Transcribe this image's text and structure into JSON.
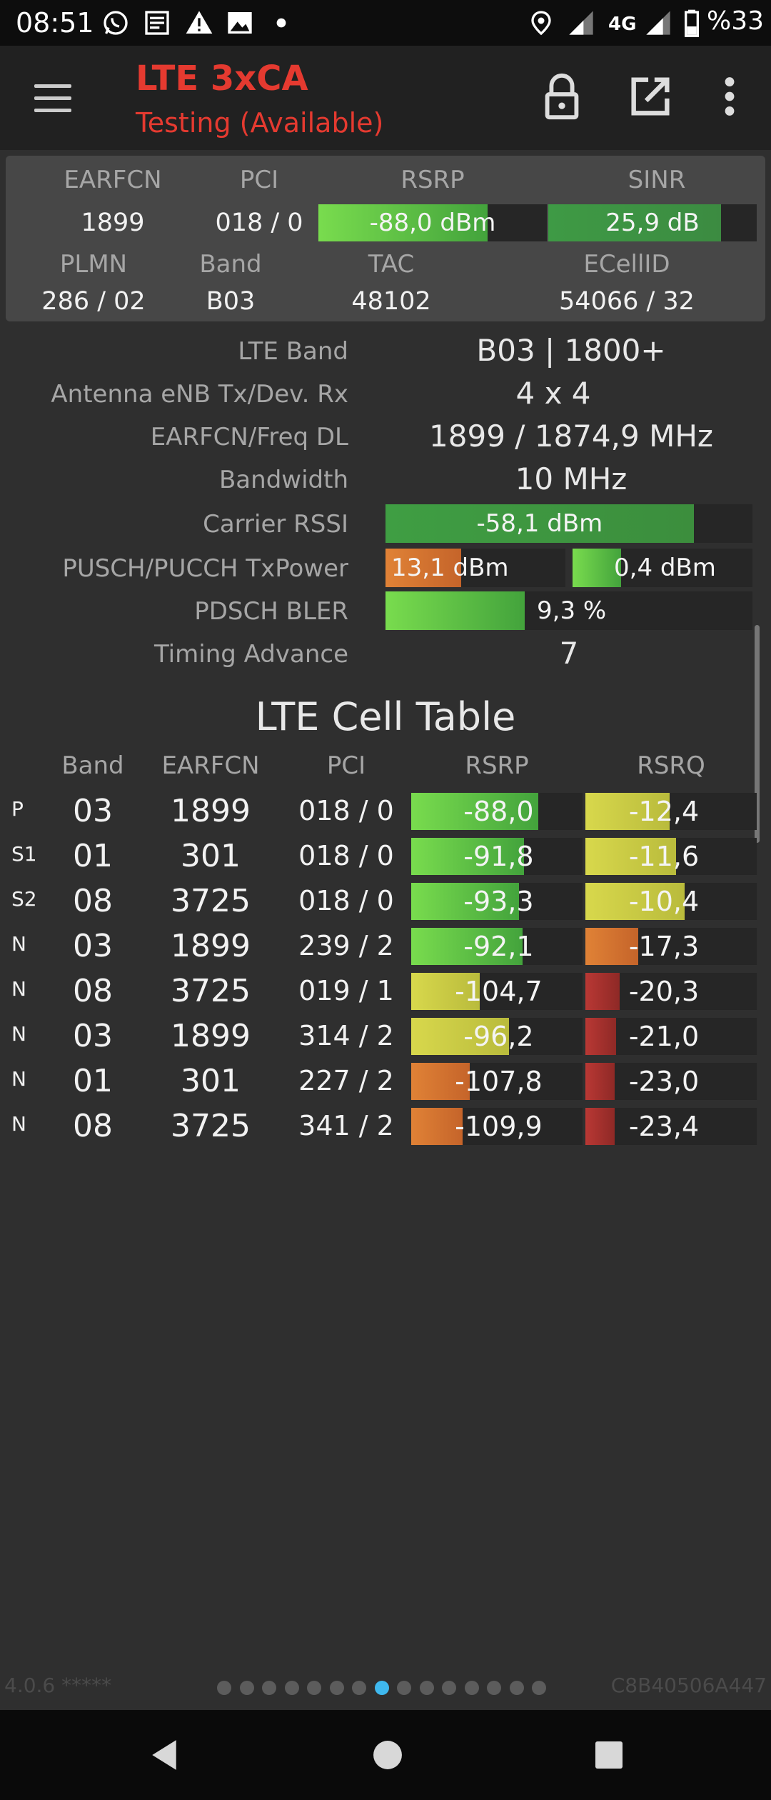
{
  "status_bar": {
    "time": "08:51",
    "network": "4G",
    "battery": "%33",
    "icons": [
      "whatsapp-icon",
      "news-icon",
      "warning-icon",
      "image-icon",
      "dot-icon",
      "location-icon",
      "signal-icon",
      "signal-icon",
      "battery-icon"
    ]
  },
  "app_bar": {
    "title": "LTE 3xCA",
    "subtitle": "Testing (Available)",
    "accent": "#e53a30"
  },
  "summary": {
    "headers_row1": {
      "earfcn": "EARFCN",
      "pci": "PCI",
      "rsrp": "RSRP",
      "sinr": "SINR"
    },
    "values_row1": {
      "earfcn": "1899",
      "pci": "018 / 0",
      "rsrp": "-88,0 dBm",
      "sinr": "25,9 dB"
    },
    "rsrp_level": 0.74,
    "sinr_level": 0.83,
    "headers_row2": {
      "plmn": "PLMN",
      "band": "Band",
      "tac": "TAC",
      "ecellid": "ECellID"
    },
    "values_row2": {
      "plmn": "286 / 02",
      "band": "B03",
      "tac": "48102",
      "ecellid": "54066 / 32"
    }
  },
  "details": {
    "lte_band": {
      "label": "LTE Band",
      "value": "B03 | 1800+"
    },
    "antenna": {
      "label": "Antenna eNB Tx/Dev. Rx",
      "value": "4 x 4"
    },
    "earfcn_freq": {
      "label": "EARFCN/Freq DL",
      "value": "1899 / 1874,9 MHz"
    },
    "bandwidth": {
      "label": "Bandwidth",
      "value": "10 MHz"
    },
    "carrier_rssi": {
      "label": "Carrier RSSI",
      "value": "-58,1 dBm",
      "level": 0.84
    },
    "txpower": {
      "label": "PUSCH/PUCCH TxPower",
      "pusch": "13,1 dBm",
      "pucch": "0,4 dBm",
      "pusch_level": 0.42,
      "pucch_level": 0.27
    },
    "bler": {
      "label": "PDSCH BLER",
      "value": "9,3 %",
      "level": 0.38
    },
    "timing_advance": {
      "label": "Timing Advance",
      "value": "7"
    }
  },
  "cell_table": {
    "title": "LTE Cell Table",
    "headers": {
      "band": "Band",
      "earfcn": "EARFCN",
      "pci": "PCI",
      "rsrp": "RSRP",
      "rsrq": "RSRQ"
    },
    "rows": [
      {
        "type": "P",
        "band": "03",
        "earfcn": "1899",
        "pci": "018 / 0",
        "rsrp": "-88,0",
        "rsrq": "-12,4",
        "rsrp_level": 0.74,
        "rsrq_level": 0.49,
        "rsrp_color": "green",
        "rsrq_color": "yellow"
      },
      {
        "type": "S1",
        "band": "01",
        "earfcn": "301",
        "pci": "018 / 0",
        "rsrp": "-91,8",
        "rsrq": "-11,6",
        "rsrp_level": 0.66,
        "rsrq_level": 0.53,
        "rsrp_color": "green",
        "rsrq_color": "yellow"
      },
      {
        "type": "S2",
        "band": "08",
        "earfcn": "3725",
        "pci": "018 / 0",
        "rsrp": "-93,3",
        "rsrq": "-10,4",
        "rsrp_level": 0.63,
        "rsrq_level": 0.58,
        "rsrp_color": "green",
        "rsrq_color": "yellow"
      },
      {
        "type": "N",
        "band": "03",
        "earfcn": "1899",
        "pci": "239 / 2",
        "rsrp": "-92,1",
        "rsrq": "-17,3",
        "rsrp_level": 0.65,
        "rsrq_level": 0.31,
        "rsrp_color": "green",
        "rsrq_color": "orange"
      },
      {
        "type": "N",
        "band": "08",
        "earfcn": "3725",
        "pci": "019 / 1",
        "rsrp": "-104,7",
        "rsrq": "-20,3",
        "rsrp_level": 0.4,
        "rsrq_level": 0.2,
        "rsrp_color": "yellow",
        "rsrq_color": "red"
      },
      {
        "type": "N",
        "band": "03",
        "earfcn": "1899",
        "pci": "314 / 2",
        "rsrp": "-96,2",
        "rsrq": "-21,0",
        "rsrp_level": 0.57,
        "rsrq_level": 0.18,
        "rsrp_color": "yellow",
        "rsrq_color": "red"
      },
      {
        "type": "N",
        "band": "01",
        "earfcn": "301",
        "pci": "227 / 2",
        "rsrp": "-107,8",
        "rsrq": "-23,0",
        "rsrp_level": 0.34,
        "rsrq_level": 0.17,
        "rsrp_color": "orange",
        "rsrq_color": "red"
      },
      {
        "type": "N",
        "band": "08",
        "earfcn": "3725",
        "pci": "341 / 2",
        "rsrp": "-109,9",
        "rsrq": "-23,4",
        "rsrp_level": 0.3,
        "rsrq_level": 0.17,
        "rsrp_color": "orange",
        "rsrq_color": "red"
      }
    ]
  },
  "footer": {
    "version": "4.0.6 *****",
    "device_id": "C8B40506A447",
    "pages": 15,
    "active_page": 7
  },
  "colors": {
    "green": "#5ec63e",
    "yellow": "#cfd046",
    "orange": "#d9772e",
    "red": "#a9312c",
    "dot_active": "#3fb8ee"
  }
}
